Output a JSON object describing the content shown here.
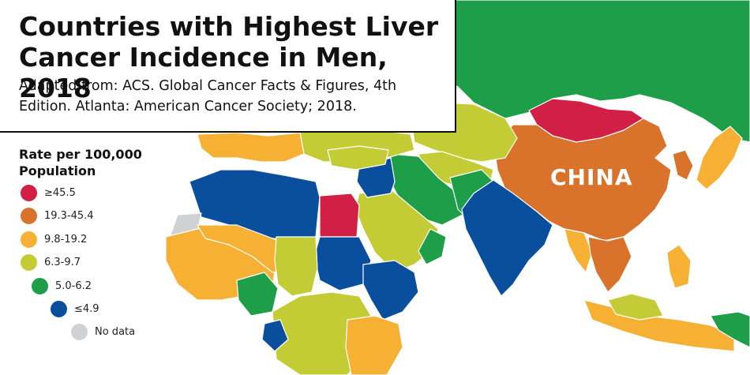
{
  "title": "Countries with Highest Liver Cancer Incidence in Men, 2018",
  "source": "Adapted from: ACS. Global Cancer Facts & Figures, 4th Edition. Atlanta: American Cancer Society; 2018.",
  "legend": {
    "title": "Rate per 100,000 Population",
    "items": [
      {
        "label": "≥45.5",
        "color": "#d11f45"
      },
      {
        "label": "19.3-45.4",
        "color": "#d9722b"
      },
      {
        "label": "9.8-19.2",
        "color": "#f6b034"
      },
      {
        "label": "6.3-9.7",
        "color": "#c4cc35"
      },
      {
        "label": "5.0-6.2",
        "color": "#1f9e4a"
      },
      {
        "label": "≤4.9",
        "color": "#0a4f9e"
      },
      {
        "label": "No data",
        "color": "#cfd1d3"
      }
    ]
  },
  "map_labels": {
    "china": "CHINA"
  },
  "colors": {
    "ocean": "#ffffff",
    "border": "#ffffff"
  }
}
